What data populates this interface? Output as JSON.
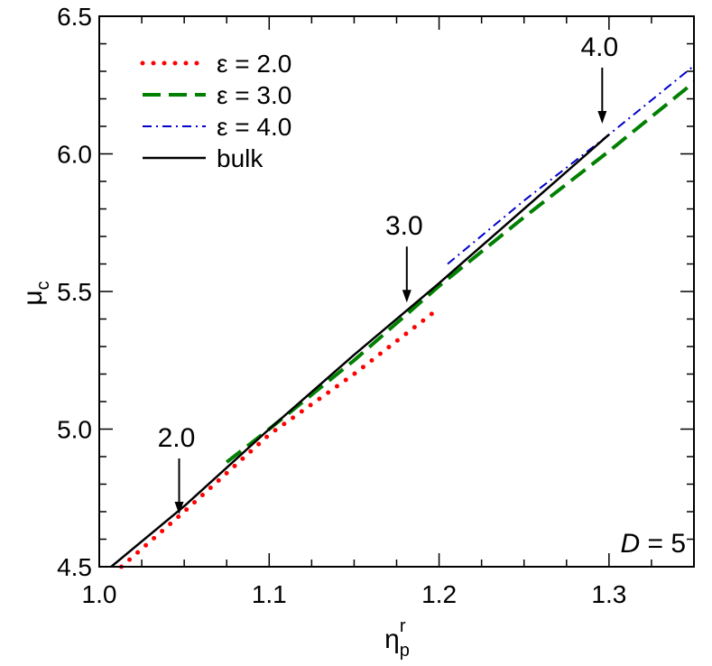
{
  "chart_data": {
    "type": "line",
    "x_axis": {
      "label_main": "η",
      "label_sub": "p",
      "label_sup": "r",
      "range": [
        1.0,
        1.35
      ],
      "ticks": [
        1.0,
        1.1,
        1.2,
        1.3
      ],
      "tick_labels": [
        "1.0",
        "1.1",
        "1.2",
        "1.3"
      ],
      "minor_step": 0.025
    },
    "y_axis": {
      "label_main": "μ",
      "label_sub": "c",
      "range": [
        4.5,
        6.5
      ],
      "ticks": [
        4.5,
        5.0,
        5.5,
        6.0,
        6.5
      ],
      "tick_labels": [
        "4.5",
        "5.0",
        "5.5",
        "6.0",
        "6.5"
      ],
      "minor_step": 0.1
    },
    "grid": false,
    "legend": {
      "placement": "top-left",
      "entries": [
        {
          "label": "ε = 2.0",
          "series": 0
        },
        {
          "label": "ε = 3.0",
          "series": 1
        },
        {
          "label": "ε = 4.0",
          "series": 2
        },
        {
          "label": "bulk",
          "series": 3
        }
      ]
    },
    "series": [
      {
        "name": "ε = 2.0",
        "color": "#ff0000",
        "style": "dotted",
        "points": [
          [
            1.013,
            4.5
          ],
          [
            1.05,
            4.7
          ],
          [
            1.1,
            4.98
          ],
          [
            1.15,
            5.2
          ],
          [
            1.198,
            5.43
          ]
        ]
      },
      {
        "name": "ε = 3.0",
        "color": "#008000",
        "style": "dashed",
        "points": [
          [
            1.075,
            4.88
          ],
          [
            1.1,
            5.0
          ],
          [
            1.15,
            5.25
          ],
          [
            1.2,
            5.52
          ],
          [
            1.25,
            5.77
          ],
          [
            1.3,
            6.01
          ],
          [
            1.35,
            6.26
          ]
        ]
      },
      {
        "name": "ε = 4.0",
        "color": "#0000cc",
        "style": "dashdot",
        "points": [
          [
            1.205,
            5.6
          ],
          [
            1.25,
            5.83
          ],
          [
            1.3,
            6.07
          ],
          [
            1.35,
            6.32
          ]
        ]
      },
      {
        "name": "bulk",
        "color": "#000000",
        "style": "solid",
        "points": [
          [
            1.007,
            4.5
          ],
          [
            1.05,
            4.72
          ],
          [
            1.1,
            5.0
          ],
          [
            1.15,
            5.27
          ],
          [
            1.2,
            5.53
          ],
          [
            1.25,
            5.8
          ],
          [
            1.3,
            6.07
          ]
        ]
      }
    ],
    "annotations": [
      {
        "text": "2.0",
        "x": 1.047,
        "y": 4.69
      },
      {
        "text": "3.0",
        "x": 1.181,
        "y": 5.46
      },
      {
        "text": "4.0",
        "x": 1.296,
        "y": 6.11
      }
    ],
    "panel_label": {
      "var": "D",
      "rest": " = 5"
    }
  }
}
